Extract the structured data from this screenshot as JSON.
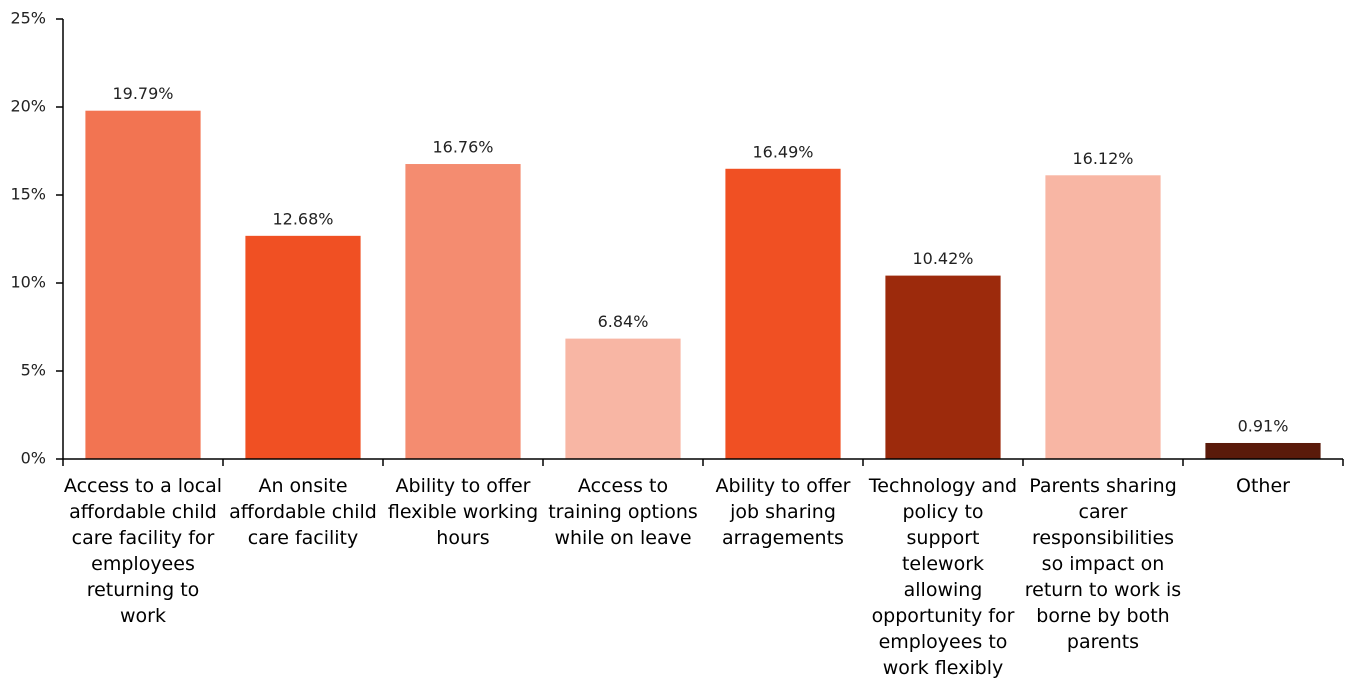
{
  "chart_data": {
    "type": "bar",
    "categories": [
      "Access to a local affordable child care facility for employees returning to work",
      "An onsite affordable child care facility",
      "Ability to offer flexible working hours",
      "Access to training options while on leave",
      "Ability to offer job sharing arragements",
      "Technology and policy to support telework allowing opportunity for employees to work flexibly",
      "Parents sharing carer responsibilities so impact on return to work is borne by both parents",
      "Other"
    ],
    "values": [
      19.79,
      12.68,
      16.76,
      6.84,
      16.49,
      10.42,
      16.12,
      0.91
    ],
    "value_labels": [
      "19.79%",
      "12.68%",
      "16.76%",
      "6.84%",
      "16.49%",
      "10.42%",
      "16.12%",
      "0.91%"
    ],
    "colors": [
      "#f27452",
      "#f05023",
      "#f48c70",
      "#f8b6a4",
      "#f05023",
      "#9c2a0c",
      "#f8b6a4",
      "#5a1a0a"
    ],
    "ylim": [
      0,
      25
    ],
    "yticks": [
      {
        "value": 0,
        "label": "0%"
      },
      {
        "value": 5,
        "label": "5%"
      },
      {
        "value": 10,
        "label": "10%"
      },
      {
        "value": 15,
        "label": "15%"
      },
      {
        "value": 20,
        "label": "20%"
      },
      {
        "value": 25,
        "label": "25%"
      }
    ],
    "grid": false
  }
}
